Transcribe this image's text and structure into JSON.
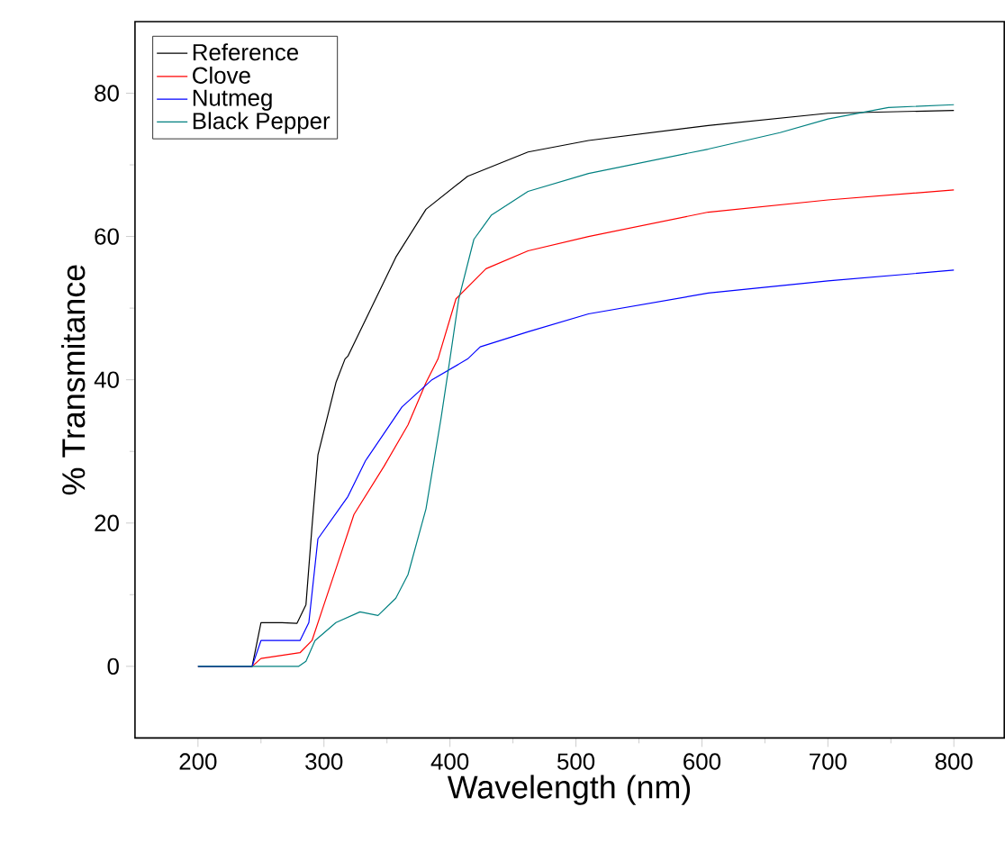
{
  "chart_data": {
    "type": "line",
    "xlabel": "Wavelength (nm)",
    "ylabel": "% Transmitance",
    "xlim": [
      150,
      840
    ],
    "ylim": [
      -10,
      90
    ],
    "xticks": [
      200,
      300,
      400,
      500,
      600,
      700,
      800
    ],
    "yticks": [
      0,
      20,
      40,
      60,
      80
    ],
    "legend": "top left",
    "grid": false,
    "marker": "none",
    "line_style": "solid",
    "series": [
      {
        "name": "Reference",
        "color": "#000000",
        "x": [
          200,
          243,
          250,
          266.7,
          278.6,
          285.7,
          290.5,
          295.2,
          309.5,
          316.7,
          319,
          357,
          381,
          414,
          462,
          510,
          605,
          700,
          800
        ],
        "values": [
          0,
          0,
          6.1,
          6.1,
          6,
          8.6,
          19.5,
          29.5,
          39.6,
          42.9,
          43.3,
          57.1,
          63.8,
          68.4,
          71.8,
          73.4,
          75.5,
          77.2,
          77.6
        ]
      },
      {
        "name": "Clove",
        "color": "#ff0000",
        "x": [
          200,
          243,
          250,
          281,
          290.5,
          300,
          309.5,
          323.8,
          347.6,
          366.7,
          381,
          390.5,
          404.8,
          428.6,
          462,
          510,
          605,
          700,
          800
        ],
        "values": [
          0,
          0,
          1.1,
          1.9,
          3.6,
          8.6,
          13.6,
          21.2,
          27.9,
          33.7,
          39.6,
          42.9,
          51.3,
          55.5,
          58,
          60,
          63.4,
          65.1,
          66.5
        ]
      },
      {
        "name": "Nutmeg",
        "color": "#0000ff",
        "x": [
          200,
          243,
          250,
          281,
          288,
          295.2,
          319,
          333,
          361.9,
          385.7,
          414,
          424,
          462,
          510,
          605,
          700,
          800
        ],
        "values": [
          0,
          0,
          3.6,
          3.6,
          6.1,
          17.8,
          23.7,
          28.7,
          36.2,
          40,
          42.9,
          44.6,
          46.7,
          49.2,
          52.1,
          53.8,
          55.3
        ]
      },
      {
        "name": "Black Pepper",
        "color": "#008080",
        "x": [
          200,
          280,
          285.7,
          292.9,
          309.5,
          328.6,
          342.9,
          357,
          366.7,
          381,
          392.9,
          400,
          407,
          419,
          433,
          462,
          510,
          605,
          662,
          700,
          748,
          800
        ],
        "values": [
          0,
          0,
          0.7,
          3.6,
          6.1,
          7.6,
          7.1,
          9.5,
          12.8,
          22,
          34.6,
          42.9,
          51.3,
          59.6,
          63,
          66.3,
          68.8,
          72.2,
          74.5,
          76.4,
          78,
          78.4
        ]
      }
    ]
  }
}
